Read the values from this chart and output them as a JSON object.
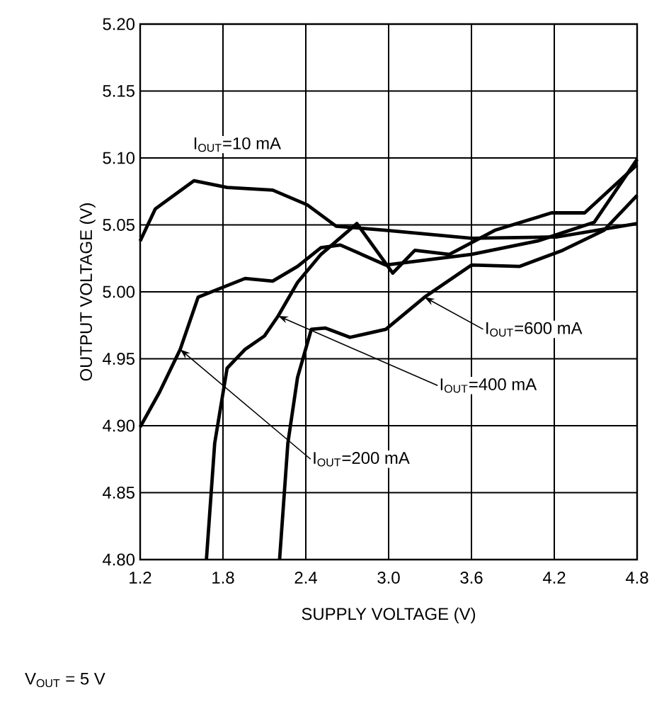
{
  "chart_data": {
    "type": "line",
    "xlabel": "SUPPLY VOLTAGE (V)",
    "ylabel": "OUTPUT VOLTAGE (V)",
    "xlim": [
      1.2,
      4.8
    ],
    "ylim": [
      4.8,
      5.2
    ],
    "xticks": [
      1.2,
      1.8,
      2.4,
      {
        "value": 3.0,
        "label": "3.0"
      },
      3.6,
      4.2,
      4.8
    ],
    "yticks": [
      {
        "value": 4.8,
        "label": "4.80"
      },
      4.85,
      {
        "value": 4.9,
        "label": "4.90"
      },
      4.95,
      {
        "value": 5.0,
        "label": "5.00"
      },
      5.05,
      {
        "value": 5.1,
        "label": "5.10"
      },
      5.15,
      {
        "value": 5.2,
        "label": "5.20"
      }
    ],
    "grid": true,
    "line_style": "solid",
    "marker": "none",
    "series": [
      {
        "color": "#000000",
        "x": [
          1.2,
          1.31,
          1.59,
          1.83,
          2.16,
          2.41,
          2.62,
          2.98,
          3.6,
          4.22,
          4.8
        ],
        "values": [
          5.038,
          5.062,
          5.083,
          5.078,
          5.076,
          5.065,
          5.049,
          5.046,
          5.04,
          5.041,
          5.051
        ]
      },
      {
        "color": "#000000",
        "x": [
          1.2,
          1.34,
          1.49,
          1.62,
          1.79,
          1.96,
          2.16,
          2.34,
          2.51,
          2.65,
          2.98,
          3.6,
          4.08,
          4.49,
          4.8
        ],
        "values": [
          4.899,
          4.925,
          4.957,
          4.996,
          5.003,
          5.01,
          5.008,
          5.019,
          5.033,
          5.035,
          5.02,
          5.028,
          5.038,
          5.052,
          5.099
        ]
      },
      {
        "color": "#000000",
        "x": [
          1.68,
          1.74,
          1.83,
          1.96,
          2.1,
          2.2,
          2.34,
          2.51,
          2.77,
          3.03,
          3.19,
          3.44,
          3.77,
          4.18,
          4.42,
          4.8
        ],
        "values": [
          4.8,
          4.887,
          4.943,
          4.957,
          4.967,
          4.982,
          5.007,
          5.028,
          5.051,
          5.014,
          5.031,
          5.028,
          5.046,
          5.059,
          5.059,
          5.095
        ]
      },
      {
        "color": "#000000",
        "x": [
          2.21,
          2.27,
          2.34,
          2.44,
          2.54,
          2.72,
          2.98,
          3.26,
          3.6,
          3.95,
          4.26,
          4.56,
          4.8
        ],
        "values": [
          4.8,
          4.887,
          4.936,
          4.972,
          4.973,
          4.966,
          4.972,
          4.996,
          5.02,
          5.019,
          5.031,
          5.046,
          5.072
        ]
      }
    ],
    "annotations": [
      "I$_{OUT}$=10 mA",
      {
        "text": "I$_{OUT}$=600 mA",
        "x": 3.26,
        "y": 4.996
      },
      {
        "text": "I$_{OUT}$=400 mA",
        "x": 2.2,
        "y": 4.982
      },
      {
        "text": "I$_{OUT}$=200 mA",
        "x": 1.49,
        "y": 4.957
      },
      "V$_{OUT}$ = 5 V"
    ]
  }
}
